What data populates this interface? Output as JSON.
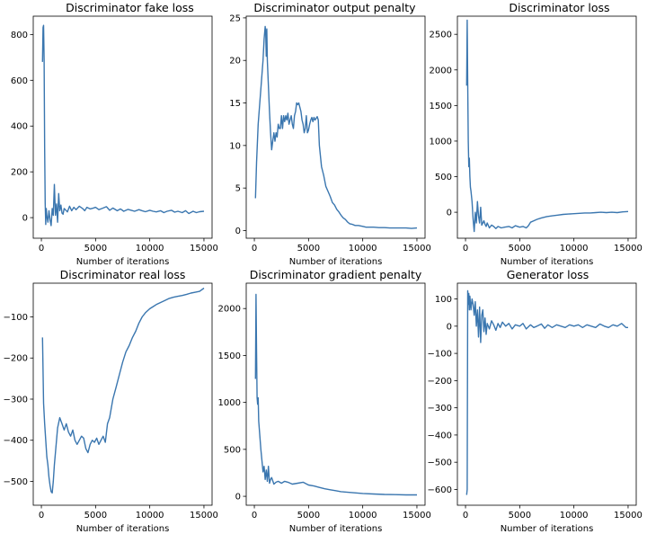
{
  "chart_data": [
    {
      "type": "line",
      "title": "Discriminator fake loss",
      "xlabel": "Number of iterations",
      "ylabel": "",
      "xlim": [
        -750,
        15750
      ],
      "ylim": [
        -90,
        880
      ],
      "xticks": [
        0,
        5000,
        10000,
        15000
      ],
      "xtick_labels": [
        "0",
        "5000",
        "10000",
        "15000"
      ],
      "yticks": [
        0,
        200,
        400,
        600,
        800
      ],
      "ytick_labels": [
        "0",
        "200",
        "400",
        "600",
        "800"
      ],
      "grid": false,
      "line_color": "#3a76af",
      "series": [
        {
          "x": [
            100,
            150,
            200,
            250,
            300,
            350,
            400,
            450,
            500,
            600,
            700,
            800,
            900,
            1000,
            1100,
            1200,
            1300,
            1400,
            1500,
            1600,
            1700,
            1800,
            1900,
            2000,
            2100,
            2200,
            2400,
            2600,
            2800,
            3000,
            3200,
            3500,
            3800,
            4000,
            4200,
            4500,
            4800,
            5000,
            5300,
            5600,
            6000,
            6300,
            6600,
            7000,
            7300,
            7600,
            8000,
            8300,
            8600,
            9000,
            9300,
            9600,
            10000,
            10300,
            10600,
            11000,
            11300,
            11600,
            12000,
            12300,
            12600,
            13000,
            13300,
            13600,
            14000,
            14300,
            14600,
            15000
          ],
          "y": [
            680,
            830,
            840,
            690,
            300,
            60,
            -30,
            40,
            10,
            -20,
            30,
            -10,
            -35,
            40,
            10,
            145,
            10,
            60,
            -20,
            105,
            30,
            55,
            20,
            15,
            40,
            35,
            25,
            50,
            30,
            45,
            35,
            50,
            40,
            30,
            45,
            38,
            42,
            45,
            35,
            40,
            48,
            32,
            42,
            30,
            38,
            28,
            36,
            32,
            28,
            35,
            30,
            26,
            32,
            28,
            25,
            30,
            22,
            28,
            32,
            24,
            28,
            22,
            30,
            18,
            28,
            22,
            26,
            28
          ]
        }
      ]
    },
    {
      "type": "line",
      "title": "Discriminator output penalty",
      "xlabel": "Number of iterations",
      "ylabel": "",
      "xlim": [
        -750,
        15750
      ],
      "ylim": [
        -0.9,
        25.2
      ],
      "xticks": [
        0,
        5000,
        10000,
        15000
      ],
      "xtick_labels": [
        "0",
        "5000",
        "10000",
        "15000"
      ],
      "yticks": [
        0,
        5,
        10,
        15,
        20,
        25
      ],
      "ytick_labels": [
        "0",
        "5",
        "10",
        "15",
        "20",
        "25"
      ],
      "grid": false,
      "line_color": "#3a76af",
      "series": [
        {
          "x": [
            100,
            200,
            350,
            500,
            650,
            800,
            900,
            1000,
            1050,
            1100,
            1150,
            1200,
            1300,
            1400,
            1500,
            1600,
            1700,
            1800,
            1900,
            2000,
            2100,
            2200,
            2300,
            2400,
            2500,
            2600,
            2700,
            2800,
            2900,
            3000,
            3100,
            3200,
            3300,
            3400,
            3500,
            3600,
            3700,
            3800,
            3900,
            4000,
            4100,
            4200,
            4300,
            4400,
            4500,
            4600,
            4700,
            4800,
            4900,
            5000,
            5100,
            5200,
            5300,
            5400,
            5500,
            5600,
            5700,
            5800,
            5900,
            6000,
            6200,
            6400,
            6600,
            6800,
            7000,
            7200,
            7400,
            7600,
            7800,
            8000,
            8200,
            8400,
            8600,
            8800,
            9000,
            9300,
            9600,
            10000,
            10300,
            10600,
            11000,
            11500,
            12000,
            12500,
            13000,
            13500,
            14000,
            14500,
            15000
          ],
          "y": [
            3.8,
            8.0,
            12.5,
            15.0,
            17.5,
            20.0,
            22.5,
            24.0,
            23.2,
            20.5,
            23.7,
            20.0,
            17.0,
            14.0,
            11.5,
            9.5,
            10.5,
            11.5,
            10.5,
            11.5,
            11.0,
            12.5,
            12.0,
            12.0,
            13.5,
            12.0,
            13.5,
            12.8,
            13.5,
            13.0,
            13.8,
            12.5,
            13.0,
            13.5,
            12.5,
            12.0,
            13.5,
            14.0,
            15.0,
            14.8,
            15.0,
            14.5,
            14.0,
            13.0,
            12.5,
            11.5,
            12.0,
            13.5,
            11.5,
            11.8,
            12.5,
            13.0,
            13.3,
            12.8,
            13.3,
            13.0,
            13.2,
            13.4,
            13.0,
            10.0,
            7.5,
            6.5,
            5.2,
            4.6,
            4.0,
            3.3,
            3.0,
            2.5,
            2.2,
            1.8,
            1.5,
            1.3,
            1.0,
            0.8,
            0.75,
            0.6,
            0.6,
            0.5,
            0.4,
            0.4,
            0.4,
            0.35,
            0.35,
            0.3,
            0.3,
            0.3,
            0.3,
            0.25,
            0.3
          ]
        }
      ]
    },
    {
      "type": "line",
      "title": "Discriminator loss",
      "xlabel": "Number of iterations",
      "ylabel": "",
      "xlim": [
        -750,
        15750
      ],
      "ylim": [
        -365,
        2755
      ],
      "xticks": [
        0,
        5000,
        10000,
        15000
      ],
      "xtick_labels": [
        "0",
        "5000",
        "10000",
        "15000"
      ],
      "yticks": [
        0,
        500,
        1000,
        1500,
        2000,
        2500
      ],
      "ytick_labels": [
        "0",
        "500",
        "1000",
        "1500",
        "2000",
        "2500"
      ],
      "grid": false,
      "line_color": "#3a76af",
      "series": [
        {
          "x": [
            100,
            150,
            200,
            250,
            300,
            350,
            400,
            450,
            500,
            600,
            700,
            800,
            900,
            1000,
            1100,
            1200,
            1300,
            1400,
            1500,
            1600,
            1700,
            1800,
            1900,
            2000,
            2200,
            2400,
            2600,
            2800,
            3000,
            3300,
            3600,
            4000,
            4300,
            4600,
            5000,
            5300,
            5600,
            5800,
            6000,
            6300,
            6600,
            7000,
            7500,
            8000,
            8500,
            9000,
            9500,
            10000,
            10500,
            11000,
            11500,
            12000,
            12500,
            13000,
            13500,
            14000,
            14500,
            15000
          ],
          "y": [
            1780,
            2700,
            1800,
            1000,
            640,
            760,
            500,
            350,
            300,
            150,
            -100,
            -270,
            0,
            -150,
            150,
            -50,
            -150,
            70,
            -180,
            -150,
            -120,
            -170,
            -200,
            -150,
            -220,
            -180,
            -200,
            -230,
            -200,
            -220,
            -210,
            -200,
            -220,
            -190,
            -210,
            -200,
            -220,
            -190,
            -140,
            -120,
            -100,
            -80,
            -60,
            -50,
            -40,
            -30,
            -25,
            -20,
            -15,
            -10,
            -10,
            -5,
            0,
            -5,
            0,
            -5,
            5,
            10
          ]
        }
      ]
    },
    {
      "type": "line",
      "title": "Discriminator real loss",
      "xlabel": "Number of iterations",
      "ylabel": "",
      "xlim": [
        -750,
        15750
      ],
      "ylim": [
        -558,
        -18
      ],
      "xticks": [
        0,
        5000,
        10000,
        15000
      ],
      "xtick_labels": [
        "0",
        "5000",
        "10000",
        "15000"
      ],
      "yticks": [
        -500,
        -400,
        -300,
        -200,
        -100
      ],
      "ytick_labels": [
        "−500",
        "−400",
        "−300",
        "−200",
        "−100"
      ],
      "grid": false,
      "line_color": "#3a76af",
      "series": [
        {
          "x": [
            100,
            200,
            300,
            400,
            500,
            600,
            700,
            800,
            900,
            1000,
            1100,
            1200,
            1300,
            1400,
            1500,
            1700,
            1900,
            2100,
            2300,
            2500,
            2700,
            2900,
            3100,
            3300,
            3500,
            3700,
            3900,
            4100,
            4300,
            4500,
            4700,
            4900,
            5100,
            5300,
            5500,
            5700,
            5900,
            6100,
            6300,
            6600,
            6900,
            7200,
            7500,
            7800,
            8100,
            8400,
            8700,
            9000,
            9300,
            9600,
            10000,
            10300,
            10600,
            11000,
            11400,
            11800,
            12200,
            12600,
            13000,
            13400,
            13800,
            14200,
            14600,
            15000
          ],
          "y": [
            -150,
            -310,
            -360,
            -400,
            -440,
            -460,
            -490,
            -510,
            -525,
            -528,
            -500,
            -460,
            -430,
            -400,
            -370,
            -345,
            -360,
            -375,
            -360,
            -380,
            -390,
            -375,
            -400,
            -410,
            -400,
            -390,
            -395,
            -420,
            -430,
            -410,
            -400,
            -405,
            -395,
            -410,
            -400,
            -390,
            -405,
            -360,
            -345,
            -300,
            -270,
            -240,
            -210,
            -185,
            -170,
            -150,
            -135,
            -115,
            -100,
            -90,
            -80,
            -75,
            -70,
            -65,
            -60,
            -55,
            -52,
            -50,
            -48,
            -45,
            -42,
            -40,
            -38,
            -30
          ]
        }
      ]
    },
    {
      "type": "line",
      "title": "Discriminator gradient penalty",
      "xlabel": "Number of iterations",
      "ylabel": "",
      "xlim": [
        -750,
        15750
      ],
      "ylim": [
        -95,
        2270
      ],
      "xticks": [
        0,
        5000,
        10000,
        15000
      ],
      "xtick_labels": [
        "0",
        "5000",
        "10000",
        "15000"
      ],
      "yticks": [
        0,
        500,
        1000,
        1500,
        2000
      ],
      "ytick_labels": [
        "0",
        "500",
        "1000",
        "1500",
        "2000"
      ],
      "grid": false,
      "line_color": "#3a76af",
      "series": [
        {
          "x": [
            100,
            150,
            200,
            250,
            300,
            350,
            400,
            500,
            600,
            700,
            800,
            900,
            1000,
            1100,
            1200,
            1300,
            1400,
            1500,
            1600,
            1800,
            2000,
            2200,
            2500,
            2800,
            3100,
            3500,
            4000,
            4500,
            5000,
            5500,
            6000,
            6500,
            7000,
            7500,
            8000,
            8500,
            9000,
            9500,
            10000,
            11000,
            12000,
            13000,
            14000,
            15000
          ],
          "y": [
            1250,
            2150,
            1550,
            1050,
            980,
            1050,
            800,
            650,
            500,
            380,
            260,
            320,
            180,
            280,
            160,
            320,
            140,
            180,
            200,
            130,
            150,
            160,
            140,
            160,
            150,
            130,
            140,
            150,
            120,
            110,
            95,
            80,
            70,
            60,
            50,
            45,
            40,
            35,
            30,
            25,
            20,
            18,
            15,
            15
          ]
        }
      ]
    },
    {
      "type": "line",
      "title": "Generator loss",
      "xlabel": "Number of iterations",
      "ylabel": "",
      "xlim": [
        -750,
        15750
      ],
      "ylim": [
        -658,
        158
      ],
      "xticks": [
        0,
        5000,
        10000,
        15000
      ],
      "xtick_labels": [
        "0",
        "5000",
        "10000",
        "15000"
      ],
      "yticks": [
        -600,
        -500,
        -400,
        -300,
        -200,
        -100,
        0,
        100
      ],
      "ytick_labels": [
        "−600",
        "−500",
        "−400",
        "−300",
        "−200",
        "−100",
        "0",
        "100"
      ],
      "grid": false,
      "line_color": "#3a76af",
      "series": [
        {
          "x": [
            100,
            150,
            200,
            250,
            300,
            350,
            400,
            500,
            600,
            700,
            800,
            900,
            1000,
            1100,
            1200,
            1300,
            1400,
            1500,
            1600,
            1700,
            1800,
            1900,
            2000,
            2200,
            2400,
            2600,
            2800,
            3000,
            3200,
            3400,
            3700,
            4000,
            4300,
            4600,
            5000,
            5300,
            5600,
            6000,
            6300,
            6600,
            7000,
            7300,
            7600,
            8000,
            8400,
            8800,
            9200,
            9600,
            10000,
            10400,
            10800,
            11200,
            11600,
            12000,
            12400,
            12800,
            13200,
            13600,
            14000,
            14400,
            14800,
            15000
          ],
          "y": [
            -620,
            -600,
            130,
            80,
            120,
            60,
            110,
            60,
            100,
            80,
            40,
            90,
            0,
            60,
            -40,
            70,
            -60,
            40,
            60,
            -20,
            30,
            -30,
            10,
            -10,
            20,
            5,
            -15,
            10,
            -5,
            15,
            0,
            10,
            -10,
            5,
            0,
            10,
            -10,
            5,
            -5,
            0,
            8,
            -8,
            5,
            -5,
            5,
            0,
            -5,
            5,
            0,
            5,
            -5,
            5,
            0,
            -5,
            8,
            0,
            -5,
            5,
            0,
            10,
            -5,
            -5
          ]
        }
      ]
    }
  ]
}
